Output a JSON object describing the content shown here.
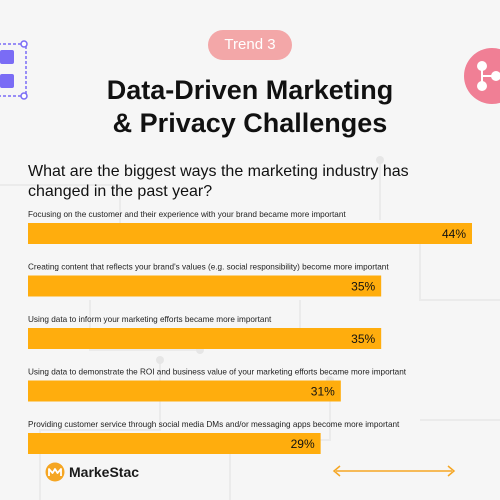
{
  "badge": {
    "label": "Trend 3"
  },
  "title": {
    "line1": "Data-Driven Marketing",
    "line2": "& Privacy Challenges"
  },
  "question": "What are the biggest ways the marketing industry has changed in the past year?",
  "brand": {
    "name": "MarkeStac"
  },
  "colors": {
    "bar": "#ffad0d",
    "badge": "#f3a7a8",
    "accent": "#f5a623",
    "grid_lines": "#ececec"
  },
  "chart_data": {
    "type": "bar",
    "orientation": "horizontal",
    "categories": [
      "Focusing on the customer and their experience with your brand became more important",
      "Creating content that reflects your brand's values (e.g. social responsibility) become more important",
      "Using data to inform your marketing efforts became more important",
      "Using data to demonstrate the ROI and business value of your marketing efforts became more important",
      "Providing customer service through social media DMs and/or messaging apps become more important"
    ],
    "values": [
      44,
      35,
      35,
      31,
      29
    ],
    "value_labels": [
      "44%",
      "35%",
      "35%",
      "31%",
      "29%"
    ],
    "unit": "%",
    "xlim": [
      0,
      44
    ],
    "grid": false,
    "legend": "none"
  }
}
